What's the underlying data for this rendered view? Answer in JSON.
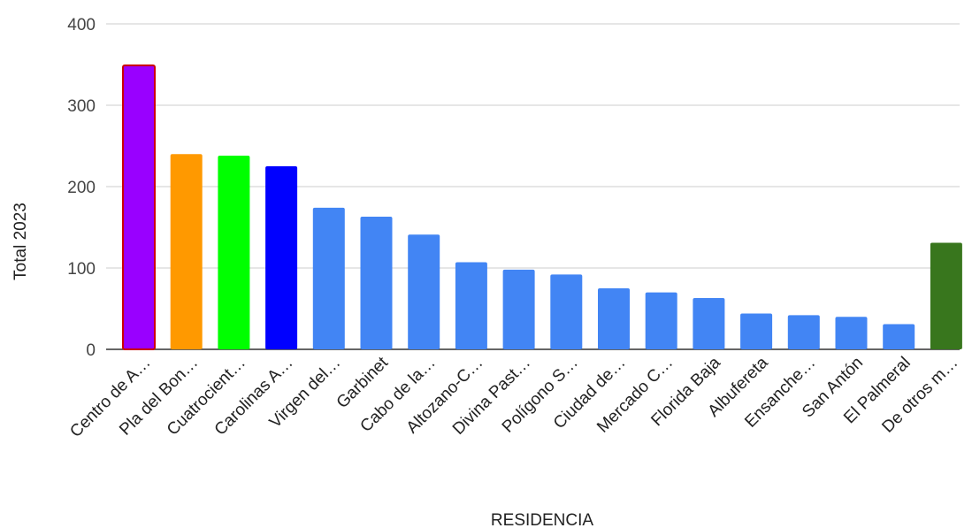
{
  "chart_data": {
    "type": "bar",
    "title": "",
    "xlabel": "RESIDENCIA",
    "ylabel": "Total 2023",
    "ylim": [
      0,
      400
    ],
    "yticks": [
      0,
      100,
      200,
      300,
      400
    ],
    "grid": true,
    "categories": [
      "Centro de A…",
      "Pla del Bon…",
      "Cuatrocient…",
      "Carolinas A…",
      "Virgen del…",
      "Garbinet",
      "Cabo de la…",
      "Altozano-C…",
      "Divina Past…",
      "Polígono S…",
      "Ciudad de…",
      "Mercado C…",
      "Florida Baja",
      "Albufereta",
      "Ensanche…",
      "San Antón",
      "El Palmeral",
      "De otros m…"
    ],
    "values": [
      349,
      240,
      238,
      225,
      174,
      163,
      141,
      107,
      98,
      92,
      75,
      70,
      63,
      44,
      42,
      40,
      31,
      131
    ],
    "colors": [
      "#9900ff",
      "#ff9900",
      "#00ff00",
      "#0000ff",
      "#4285f4",
      "#4285f4",
      "#4285f4",
      "#4285f4",
      "#4285f4",
      "#4285f4",
      "#4285f4",
      "#4285f4",
      "#4285f4",
      "#4285f4",
      "#4285f4",
      "#4285f4",
      "#4285f4",
      "#38761d"
    ],
    "highlight_outline": "#cc0000"
  }
}
